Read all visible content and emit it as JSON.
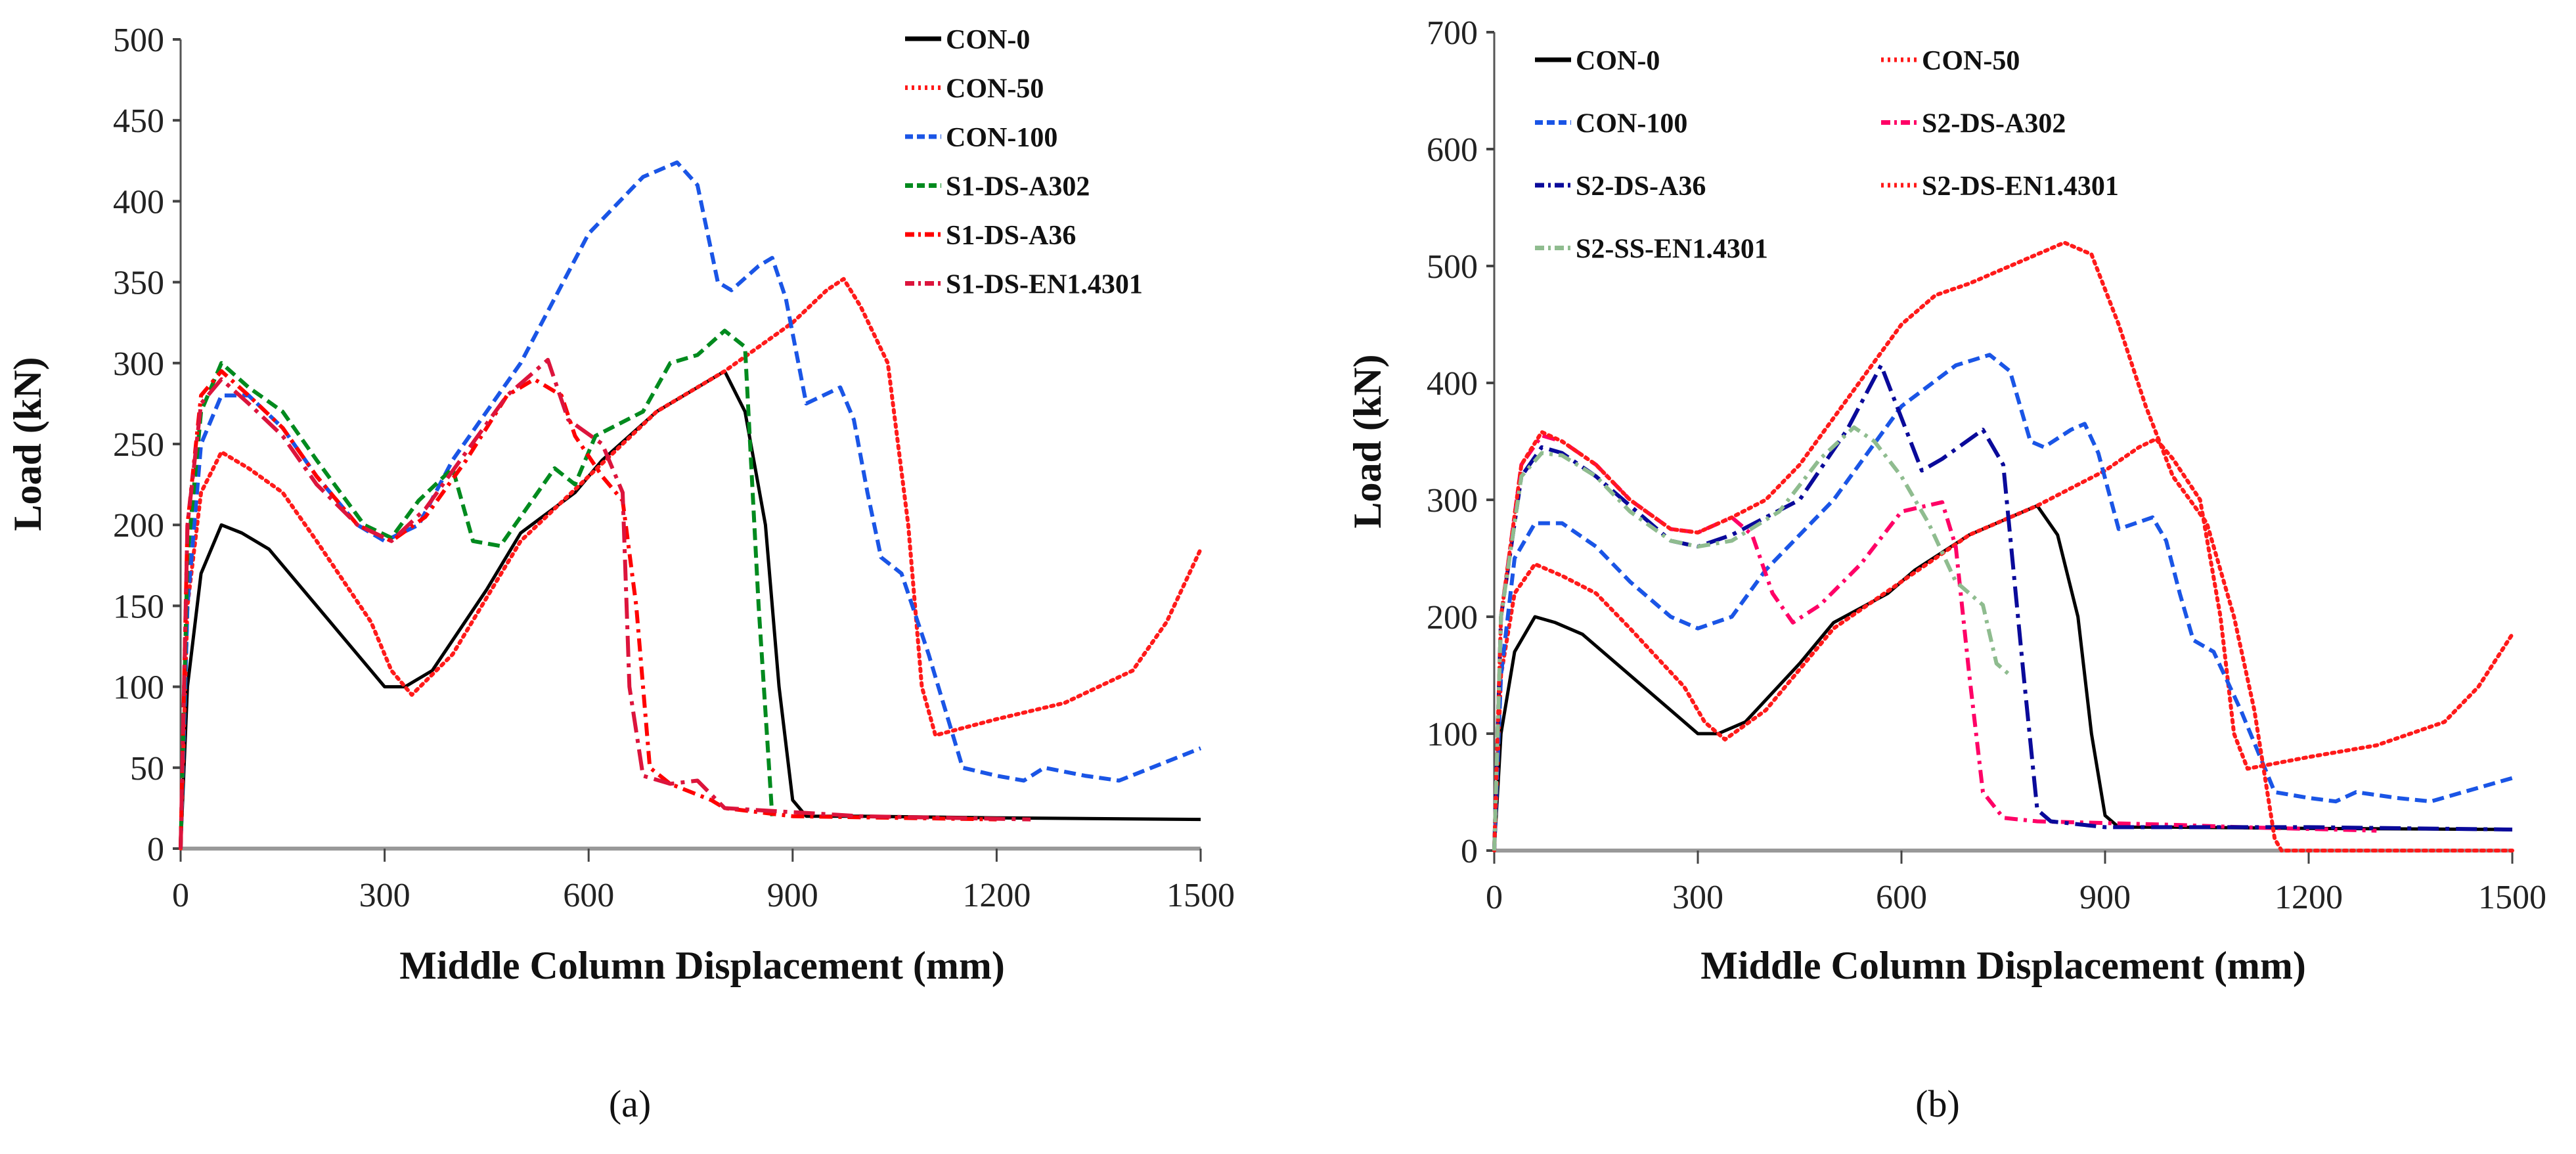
{
  "chart_data": [
    {
      "type": "line",
      "caption": "(a)",
      "xlabel": "Middle Column Displacement (mm)",
      "ylabel": "Load (kN)",
      "xlim": [
        0,
        1500
      ],
      "ylim": [
        0,
        500
      ],
      "xticks": [
        0,
        300,
        600,
        900,
        1200,
        1500
      ],
      "yticks": [
        0,
        50,
        100,
        150,
        200,
        250,
        300,
        350,
        400,
        450,
        500
      ],
      "grid": false,
      "legend": "top-right",
      "series": [
        {
          "name": "CON-0",
          "color": "#000000",
          "style": "solid",
          "x": [
            0,
            10,
            30,
            60,
            90,
            130,
            200,
            260,
            300,
            330,
            370,
            450,
            500,
            580,
            620,
            700,
            760,
            800,
            830,
            860,
            880,
            900,
            920,
            1000,
            1200,
            1500
          ],
          "y": [
            0,
            100,
            170,
            200,
            195,
            185,
            150,
            120,
            100,
            100,
            110,
            160,
            195,
            220,
            240,
            270,
            285,
            295,
            270,
            200,
            100,
            30,
            20,
            20,
            19,
            18
          ]
        },
        {
          "name": "CON-50",
          "color": "#ff1a1a",
          "style": "dotted",
          "x": [
            0,
            10,
            30,
            60,
            100,
            150,
            200,
            280,
            310,
            340,
            400,
            500,
            600,
            700,
            800,
            900,
            950,
            975,
            1000,
            1040,
            1070,
            1090,
            1110,
            1200,
            1300,
            1400,
            1450,
            1500
          ],
          "y": [
            0,
            150,
            220,
            245,
            235,
            220,
            190,
            140,
            110,
            95,
            120,
            190,
            230,
            270,
            295,
            325,
            345,
            352,
            335,
            300,
            200,
            100,
            70,
            80,
            90,
            110,
            140,
            185
          ]
        },
        {
          "name": "CON-100",
          "color": "#1a55e6",
          "style": "dashed",
          "x": [
            0,
            10,
            30,
            60,
            100,
            150,
            200,
            260,
            300,
            350,
            400,
            500,
            600,
            680,
            730,
            760,
            790,
            810,
            850,
            870,
            890,
            920,
            970,
            990,
            1010,
            1030,
            1060,
            1100,
            1150,
            1200,
            1240,
            1270,
            1330,
            1380,
            1500
          ],
          "y": [
            0,
            150,
            250,
            280,
            280,
            260,
            230,
            200,
            190,
            200,
            240,
            300,
            380,
            415,
            424,
            410,
            350,
            345,
            360,
            365,
            340,
            275,
            285,
            265,
            220,
            180,
            170,
            120,
            50,
            45,
            42,
            50,
            45,
            42,
            62
          ]
        },
        {
          "name": "S1-DS-A302",
          "color": "#008a1e",
          "style": "dashed",
          "x": [
            0,
            10,
            30,
            60,
            100,
            150,
            200,
            270,
            310,
            350,
            400,
            430,
            470,
            500,
            550,
            580,
            610,
            680,
            720,
            760,
            800,
            830,
            850,
            870
          ],
          "y": [
            0,
            180,
            270,
            300,
            285,
            270,
            240,
            200,
            192,
            215,
            235,
            190,
            187,
            205,
            235,
            225,
            255,
            270,
            300,
            305,
            320,
            310,
            150,
            20
          ]
        },
        {
          "name": "S1-DS-A36",
          "color": "#ff0000",
          "style": "dashdot",
          "x": [
            0,
            10,
            30,
            60,
            100,
            150,
            200,
            260,
            310,
            360,
            420,
            480,
            520,
            560,
            580,
            620,
            650,
            670,
            690,
            720,
            780,
            800,
            900,
            1200
          ],
          "y": [
            0,
            200,
            280,
            295,
            280,
            260,
            230,
            200,
            190,
            205,
            240,
            280,
            290,
            280,
            255,
            230,
            215,
            150,
            50,
            40,
            30,
            25,
            20,
            18
          ]
        },
        {
          "name": "S1-DS-EN1.4301",
          "color": "#dc143c",
          "style": "longdashdot",
          "x": [
            0,
            10,
            30,
            60,
            100,
            150,
            200,
            260,
            310,
            360,
            420,
            480,
            540,
            570,
            620,
            650,
            660,
            680,
            720,
            760,
            800,
            1000,
            1250
          ],
          "y": [
            0,
            200,
            275,
            290,
            275,
            255,
            225,
            200,
            190,
            210,
            245,
            280,
            302,
            265,
            250,
            220,
            100,
            45,
            40,
            42,
            25,
            20,
            18
          ]
        }
      ]
    },
    {
      "type": "line",
      "caption": "(b)",
      "xlabel": "Middle Column Displacement (mm)",
      "ylabel": "Load (kN)",
      "xlim": [
        0,
        1500
      ],
      "ylim": [
        0,
        700
      ],
      "xticks": [
        0,
        300,
        600,
        900,
        1200,
        1500
      ],
      "yticks": [
        0,
        100,
        200,
        300,
        400,
        500,
        600,
        700
      ],
      "grid": false,
      "legend": "top-left",
      "series": [
        {
          "name": "CON-0",
          "color": "#000000",
          "style": "solid",
          "x": [
            0,
            10,
            30,
            60,
            90,
            130,
            200,
            260,
            300,
            330,
            370,
            450,
            500,
            580,
            620,
            700,
            760,
            800,
            830,
            860,
            880,
            900,
            920,
            1000,
            1200,
            1500
          ],
          "y": [
            0,
            100,
            170,
            200,
            195,
            185,
            150,
            120,
            100,
            100,
            110,
            160,
            195,
            220,
            240,
            270,
            285,
            295,
            270,
            200,
            100,
            30,
            20,
            20,
            19,
            18
          ]
        },
        {
          "name": "CON-50",
          "color": "#ff1a1a",
          "style": "dotted",
          "x": [
            0,
            10,
            30,
            60,
            100,
            150,
            200,
            280,
            310,
            340,
            400,
            500,
            600,
            700,
            800,
            900,
            950,
            975,
            1000,
            1040,
            1070,
            1090,
            1110,
            1200,
            1300,
            1400,
            1450,
            1500
          ],
          "y": [
            0,
            150,
            220,
            245,
            235,
            220,
            190,
            140,
            110,
            95,
            120,
            190,
            230,
            270,
            295,
            325,
            345,
            352,
            335,
            300,
            200,
            100,
            70,
            80,
            90,
            110,
            140,
            185
          ]
        },
        {
          "name": "CON-100",
          "color": "#1a55e6",
          "style": "dashed",
          "x": [
            0,
            10,
            30,
            60,
            100,
            150,
            200,
            260,
            300,
            350,
            400,
            500,
            600,
            680,
            730,
            760,
            790,
            810,
            850,
            870,
            890,
            920,
            970,
            990,
            1010,
            1030,
            1060,
            1100,
            1150,
            1200,
            1240,
            1270,
            1330,
            1380,
            1500
          ],
          "y": [
            0,
            150,
            250,
            280,
            280,
            260,
            230,
            200,
            190,
            200,
            240,
            300,
            380,
            415,
            424,
            410,
            350,
            345,
            360,
            365,
            340,
            275,
            285,
            265,
            220,
            180,
            170,
            120,
            50,
            45,
            42,
            50,
            45,
            42,
            62
          ]
        },
        {
          "name": "S2-DS-A302",
          "color": "#ff0066",
          "style": "dashdot",
          "x": [
            0,
            10,
            40,
            70,
            100,
            150,
            200,
            260,
            300,
            350,
            380,
            410,
            440,
            480,
            540,
            600,
            660,
            680,
            700,
            720,
            750,
            800,
            1000,
            1100,
            1300
          ],
          "y": [
            0,
            200,
            330,
            355,
            350,
            330,
            300,
            275,
            272,
            285,
            270,
            220,
            195,
            210,
            245,
            290,
            298,
            260,
            150,
            50,
            28,
            25,
            22,
            20,
            17
          ]
        },
        {
          "name": "S2-DS-A36",
          "color": "#0a0a9a",
          "style": "longdashdot",
          "x": [
            0,
            10,
            40,
            70,
            100,
            150,
            200,
            260,
            300,
            350,
            450,
            520,
            570,
            600,
            630,
            660,
            720,
            750,
            780,
            800,
            820,
            900,
            1200,
            1500
          ],
          "y": [
            0,
            200,
            320,
            345,
            340,
            320,
            295,
            265,
            260,
            270,
            300,
            360,
            415,
            370,
            325,
            335,
            360,
            330,
            150,
            35,
            25,
            20,
            20,
            18
          ]
        },
        {
          "name": "S2-DS-EN1.4301",
          "color": "#ff1a1a",
          "style": "dotted",
          "x": [
            0,
            10,
            40,
            70,
            100,
            150,
            200,
            260,
            300,
            350,
            400,
            450,
            550,
            600,
            650,
            700,
            780,
            840,
            880,
            920,
            960,
            1000,
            1050,
            1090,
            1120,
            1150,
            1160,
            1500
          ],
          "y": [
            0,
            200,
            330,
            358,
            350,
            330,
            300,
            275,
            272,
            285,
            300,
            330,
            410,
            450,
            475,
            485,
            505,
            520,
            510,
            450,
            380,
            320,
            280,
            200,
            120,
            10,
            0,
            0
          ]
        },
        {
          "name": "S2-SS-EN1.4301",
          "color": "#8fbc8f",
          "style": "dashdot",
          "x": [
            0,
            10,
            40,
            70,
            100,
            150,
            200,
            260,
            300,
            350,
            420,
            480,
            530,
            560,
            600,
            640,
            680,
            720,
            740,
            760
          ],
          "y": [
            0,
            200,
            320,
            340,
            338,
            320,
            290,
            265,
            260,
            265,
            290,
            335,
            362,
            350,
            320,
            280,
            230,
            210,
            160,
            150
          ]
        }
      ]
    }
  ]
}
